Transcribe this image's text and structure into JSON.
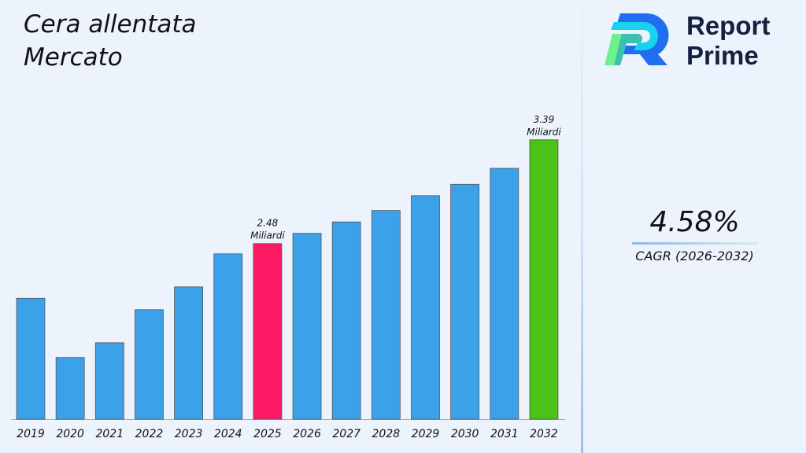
{
  "title_line1": "Cera allentata",
  "title_line2": "Mercato",
  "brand": {
    "line1": "Report",
    "line2": "Prime"
  },
  "cagr": {
    "value": "4.58%",
    "label": "CAGR (2026-2032)"
  },
  "colors": {
    "default": "#3ba1e8",
    "highlight_2025": "#fc1a64",
    "highlight_2032": "#4cc118"
  },
  "chart_data": {
    "type": "bar",
    "categories": [
      "2019",
      "2020",
      "2021",
      "2022",
      "2023",
      "2024",
      "2025",
      "2026",
      "2027",
      "2028",
      "2029",
      "2030",
      "2031",
      "2032"
    ],
    "values": [
      2.0,
      1.48,
      1.61,
      1.9,
      2.1,
      2.39,
      2.48,
      2.57,
      2.67,
      2.77,
      2.9,
      3.0,
      3.14,
      3.39
    ],
    "data_labels": [
      {
        "category": "2025",
        "value": "2.48",
        "unit": "Miliardi"
      },
      {
        "category": "2032",
        "value": "3.39",
        "unit": "Miliardi"
      }
    ],
    "ylim": [
      0.94,
      3.5
    ],
    "grid": false,
    "xlabel": "",
    "ylabel": ""
  }
}
